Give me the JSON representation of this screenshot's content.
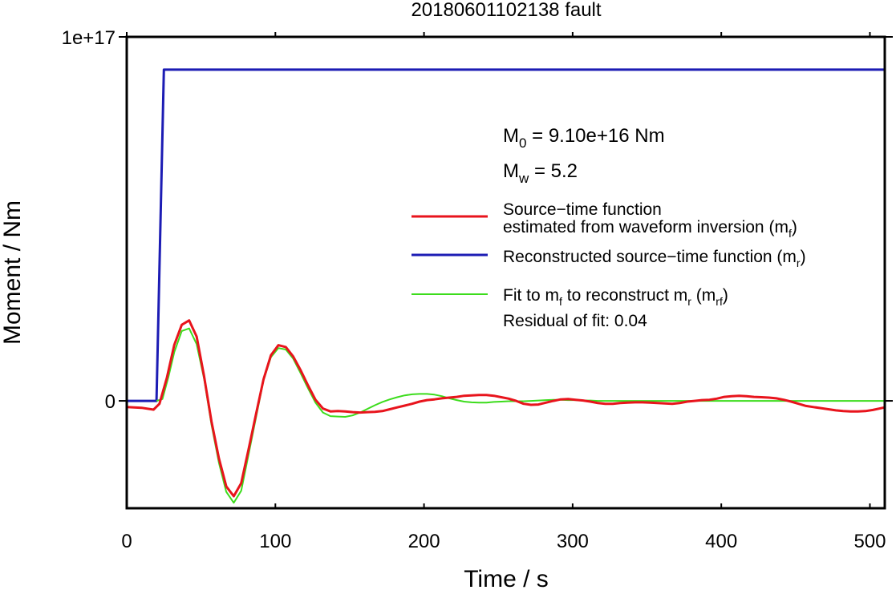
{
  "chart_data": {
    "type": "line",
    "title": "20180601102138 fault",
    "xlabel": "Time / s",
    "ylabel": "Moment / Nm",
    "xlim": [
      0,
      510
    ],
    "ylim": [
      -2.95e+16,
      1e+17
    ],
    "x_ticks": [
      0,
      100,
      200,
      300,
      400,
      500
    ],
    "x_tick_labels": [
      "0",
      "100",
      "200",
      "300",
      "400",
      "500"
    ],
    "y_ticks": [
      0,
      1e+17
    ],
    "y_tick_labels": [
      "0",
      "1e+17"
    ],
    "grid": false,
    "legend_position": "right",
    "annotations": {
      "m0": {
        "prefix": "M",
        "sub": "0",
        "rest": " = 9.10e+16 Nm"
      },
      "mw": {
        "prefix": "M",
        "sub": "w",
        "rest": " = 5.2"
      },
      "residual": "Residual of fit: 0.04"
    },
    "legend": [
      {
        "color": "#e8141c",
        "lines": [
          [
            {
              "t": "Source−time function"
            }
          ],
          [
            {
              "t": "estimated from waveform inversion (m"
            },
            {
              "t": "f",
              "sub": true
            },
            {
              "t": ")"
            }
          ]
        ]
      },
      {
        "color": "#1c1cb4",
        "lines": [
          [
            {
              "t": "Reconstructed source−time function (m"
            },
            {
              "t": "r",
              "sub": true
            },
            {
              "t": ")"
            }
          ]
        ]
      },
      {
        "color": "#3cdc1c",
        "lines": [
          [
            {
              "t": "Fit to m"
            },
            {
              "t": "f",
              "sub": true
            },
            {
              "t": " to reconstruct m"
            },
            {
              "t": "r",
              "sub": true
            },
            {
              "t": " (m"
            },
            {
              "t": "rf",
              "sub": true
            },
            {
              "t": ")"
            }
          ]
        ]
      }
    ],
    "series": [
      {
        "name": "Source−time function estimated from waveform inversion (mf)",
        "color": "#e8141c",
        "x": [
          0,
          10,
          18,
          22,
          27,
          32,
          37,
          42,
          47,
          52,
          57,
          62,
          67,
          72,
          77,
          82,
          87,
          92,
          97,
          102,
          107,
          112,
          117,
          122,
          127,
          132,
          137,
          142,
          147,
          152,
          157,
          162,
          167,
          172,
          177,
          182,
          187,
          192,
          197,
          202,
          207,
          212,
          217,
          222,
          227,
          232,
          237,
          242,
          247,
          252,
          257,
          262,
          267,
          272,
          277,
          282,
          287,
          292,
          297,
          302,
          307,
          312,
          317,
          322,
          327,
          332,
          337,
          342,
          347,
          352,
          357,
          362,
          367,
          372,
          377,
          382,
          387,
          392,
          397,
          402,
          407,
          412,
          417,
          422,
          427,
          432,
          437,
          442,
          447,
          452,
          457,
          462,
          467,
          472,
          477,
          482,
          487,
          492,
          497,
          502,
          510
        ],
        "y": [
          -1700000000000000.0,
          -1900000000000000.0,
          -2400000000000000.0,
          -800000000000000.0,
          6300000000000000.0,
          1.54e+16,
          2.09e+16,
          2.21e+16,
          1.77e+16,
          6800000000000000.0,
          -5600000000000000.0,
          -1.58e+16,
          -2.35e+16,
          -2.62e+16,
          -2.26e+16,
          -1.33e+16,
          -3600000000000000.0,
          5900000000000000.0,
          1.25e+16,
          1.53e+16,
          1.48e+16,
          1.22e+16,
          8400000000000000.0,
          4200000000000000.0,
          300000000000000.0,
          -2100000000000000.0,
          -2900000000000000.0,
          -2800000000000000.0,
          -2900000000000000.0,
          -3100000000000000.0,
          -3200000000000000.0,
          -3100000000000000.0,
          -3000000000000000.0,
          -2800000000000000.0,
          -2300000000000000.0,
          -1800000000000000.0,
          -1300000000000000.0,
          -800000000000000.0,
          -200000000000000.0,
          200000000000000.0,
          400000000000000.0,
          700000000000000.0,
          900000000000000.0,
          1100000000000000.0,
          1400000000000000.0,
          1500000000000000.0,
          1600000000000000.0,
          1600000000000000.0,
          1400000000000000.0,
          1000000000000000.0,
          600000000000000.0,
          0,
          -800000000000000.0,
          -1100000000000000.0,
          -1000000000000000.0,
          -500000000000000.0,
          0,
          400000000000000.0,
          500000000000000.0,
          300000000000000.0,
          100000000000000.0,
          -200000000000000.0,
          -600000000000000.0,
          -800000000000000.0,
          -800000000000000.0,
          -600000000000000.0,
          -500000000000000.0,
          -400000000000000.0,
          -400000000000000.0,
          -500000000000000.0,
          -600000000000000.0,
          -700000000000000.0,
          -800000000000000.0,
          -600000000000000.0,
          -200000000000000.0,
          0,
          200000000000000.0,
          300000000000000.0,
          600000000000000.0,
          1100000000000000.0,
          1300000000000000.0,
          1400000000000000.0,
          1300000000000000.0,
          1100000000000000.0,
          1000000000000000.0,
          900000000000000.0,
          700000000000000.0,
          300000000000000.0,
          -200000000000000.0,
          -800000000000000.0,
          -1400000000000000.0,
          -1700000000000000.0,
          -2000000000000000.0,
          -2300000000000000.0,
          -2600000000000000.0,
          -2800000000000000.0,
          -2900000000000000.0,
          -2900000000000000.0,
          -2800000000000000.0,
          -2500000000000000.0,
          -1800000000000000.0
        ]
      },
      {
        "name": "Reconstructed source−time function (mr)",
        "color": "#1c1cb4",
        "x": [
          0,
          20,
          25,
          510
        ],
        "y": [
          0,
          0,
          9.1e+16,
          9.1e+16
        ]
      },
      {
        "name": "Fit to mf to reconstruct mr (mrf)",
        "color": "#3cdc1c",
        "x": [
          20,
          24,
          28,
          32,
          37,
          42,
          47,
          52,
          57,
          62,
          67,
          72,
          77,
          82,
          87,
          92,
          97,
          102,
          107,
          112,
          117,
          122,
          127,
          132,
          137,
          142,
          147,
          152,
          157,
          162,
          167,
          172,
          177,
          182,
          187,
          192,
          197,
          202,
          207,
          212,
          217,
          222,
          227,
          232,
          237,
          242,
          247,
          252,
          257,
          262,
          267,
          272,
          277,
          282,
          287,
          292,
          297,
          302,
          307,
          312,
          317,
          322,
          332,
          342,
          352,
          362,
          372,
          382,
          392,
          402,
          412,
          422,
          432,
          442,
          452,
          462,
          472,
          482,
          492,
          502,
          510
        ],
        "y": [
          0,
          500000000000000.0,
          6500000000000000.0,
          1.34e+16,
          1.92e+16,
          1.99e+16,
          1.56e+16,
          6100000000000000.0,
          -6500000000000000.0,
          -1.7e+16,
          -2.5e+16,
          -2.8e+16,
          -2.47e+16,
          -1.47e+16,
          -4500000000000000.0,
          5600000000000000.0,
          1.2e+16,
          1.45e+16,
          1.41e+16,
          1.16e+16,
          7600000000000000.0,
          3400000000000000.0,
          -500000000000000.0,
          -3200000000000000.0,
          -4200000000000000.0,
          -4300000000000000.0,
          -4400000000000000.0,
          -4000000000000000.0,
          -3200000000000000.0,
          -2200000000000000.0,
          -1200000000000000.0,
          -300000000000000.0,
          400000000000000.0,
          1000000000000000.0,
          1500000000000000.0,
          1800000000000000.0,
          1900000000000000.0,
          1900000000000000.0,
          1700000000000000.0,
          1300000000000000.0,
          700000000000000.0,
          200000000000000.0,
          -200000000000000.0,
          -400000000000000.0,
          -500000000000000.0,
          -500000000000000.0,
          -300000000000000.0,
          -200000000000000.0,
          -100000000000000.0,
          -100000000000000.0,
          -100000000000000.0,
          0,
          100000000000000.0,
          200000000000000.0,
          300000000000000.0,
          300000000000000.0,
          200000000000000.0,
          200000000000000.0,
          100000000000000.0,
          100000000000000.0,
          0,
          0,
          0,
          0,
          0,
          0,
          0,
          0,
          0,
          0,
          0,
          0,
          0,
          0,
          0,
          0,
          0,
          0,
          0,
          0,
          0
        ]
      }
    ]
  }
}
